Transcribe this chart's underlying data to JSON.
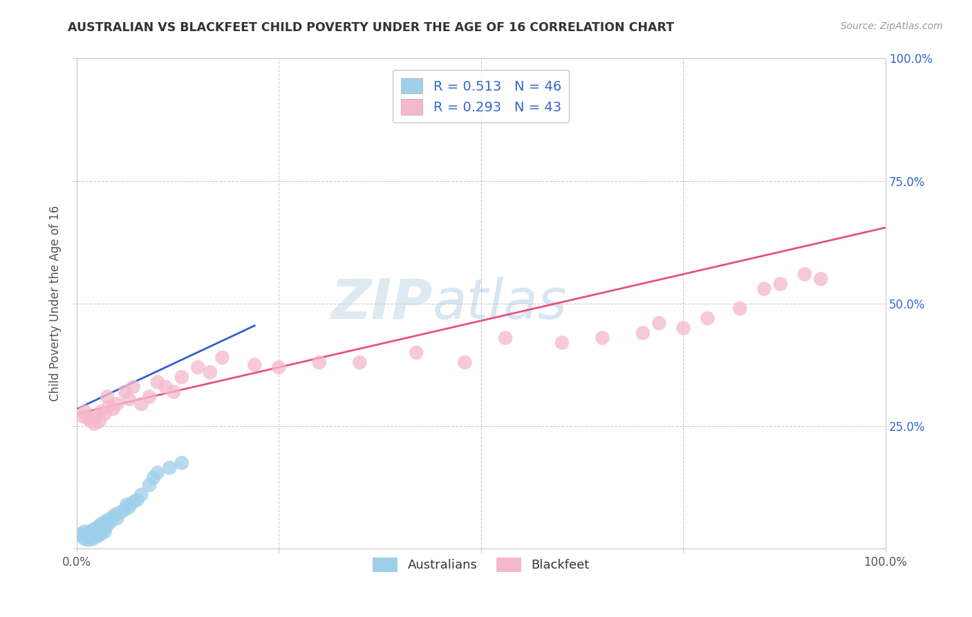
{
  "title": "AUSTRALIAN VS BLACKFEET CHILD POVERTY UNDER THE AGE OF 16 CORRELATION CHART",
  "source": "Source: ZipAtlas.com",
  "ylabel": "Child Poverty Under the Age of 16",
  "xlim": [
    0.0,
    1.0
  ],
  "ylim": [
    0.0,
    1.0
  ],
  "australian_R": 0.513,
  "australian_N": 46,
  "blackfeet_R": 0.293,
  "blackfeet_N": 43,
  "australian_color": "#9ecfea",
  "blackfeet_color": "#f5b8cb",
  "australian_trend_color": "#3060d0",
  "blackfeet_trend_color": "#e8507a",
  "watermark_zip": "ZIP",
  "watermark_atlas": "atlas",
  "australian_x": [
    0.005,
    0.007,
    0.008,
    0.01,
    0.01,
    0.012,
    0.013,
    0.014,
    0.015,
    0.015,
    0.016,
    0.018,
    0.018,
    0.02,
    0.02,
    0.022,
    0.022,
    0.024,
    0.025,
    0.026,
    0.027,
    0.028,
    0.03,
    0.03,
    0.032,
    0.033,
    0.035,
    0.035,
    0.038,
    0.04,
    0.042,
    0.045,
    0.048,
    0.05,
    0.055,
    0.06,
    0.062,
    0.065,
    0.07,
    0.075,
    0.08,
    0.09,
    0.095,
    0.1,
    0.115,
    0.13
  ],
  "australian_y": [
    0.03,
    0.025,
    0.028,
    0.02,
    0.035,
    0.025,
    0.03,
    0.022,
    0.018,
    0.028,
    0.032,
    0.025,
    0.035,
    0.02,
    0.038,
    0.03,
    0.04,
    0.028,
    0.035,
    0.025,
    0.045,
    0.032,
    0.03,
    0.05,
    0.038,
    0.042,
    0.035,
    0.055,
    0.048,
    0.06,
    0.055,
    0.065,
    0.07,
    0.062,
    0.075,
    0.08,
    0.09,
    0.085,
    0.095,
    0.1,
    0.11,
    0.13,
    0.145,
    0.155,
    0.165,
    0.175
  ],
  "blackfeet_x": [
    0.008,
    0.01,
    0.015,
    0.018,
    0.022,
    0.025,
    0.028,
    0.03,
    0.035,
    0.038,
    0.04,
    0.045,
    0.05,
    0.06,
    0.065,
    0.07,
    0.08,
    0.09,
    0.1,
    0.11,
    0.12,
    0.13,
    0.15,
    0.165,
    0.18,
    0.22,
    0.25,
    0.3,
    0.35,
    0.42,
    0.48,
    0.53,
    0.6,
    0.65,
    0.7,
    0.72,
    0.75,
    0.78,
    0.82,
    0.85,
    0.87,
    0.9,
    0.92
  ],
  "blackfeet_y": [
    0.27,
    0.28,
    0.265,
    0.26,
    0.255,
    0.27,
    0.26,
    0.28,
    0.275,
    0.31,
    0.29,
    0.285,
    0.295,
    0.32,
    0.305,
    0.33,
    0.295,
    0.31,
    0.34,
    0.33,
    0.32,
    0.35,
    0.37,
    0.36,
    0.39,
    0.375,
    0.37,
    0.38,
    0.38,
    0.4,
    0.38,
    0.43,
    0.42,
    0.43,
    0.44,
    0.46,
    0.45,
    0.47,
    0.49,
    0.53,
    0.54,
    0.56,
    0.55
  ],
  "aus_trend_x": [
    0.0,
    0.22
  ],
  "aus_trend_y": [
    0.285,
    0.455
  ],
  "blk_trend_x": [
    0.0,
    1.0
  ],
  "blk_trend_y": [
    0.275,
    0.655
  ]
}
